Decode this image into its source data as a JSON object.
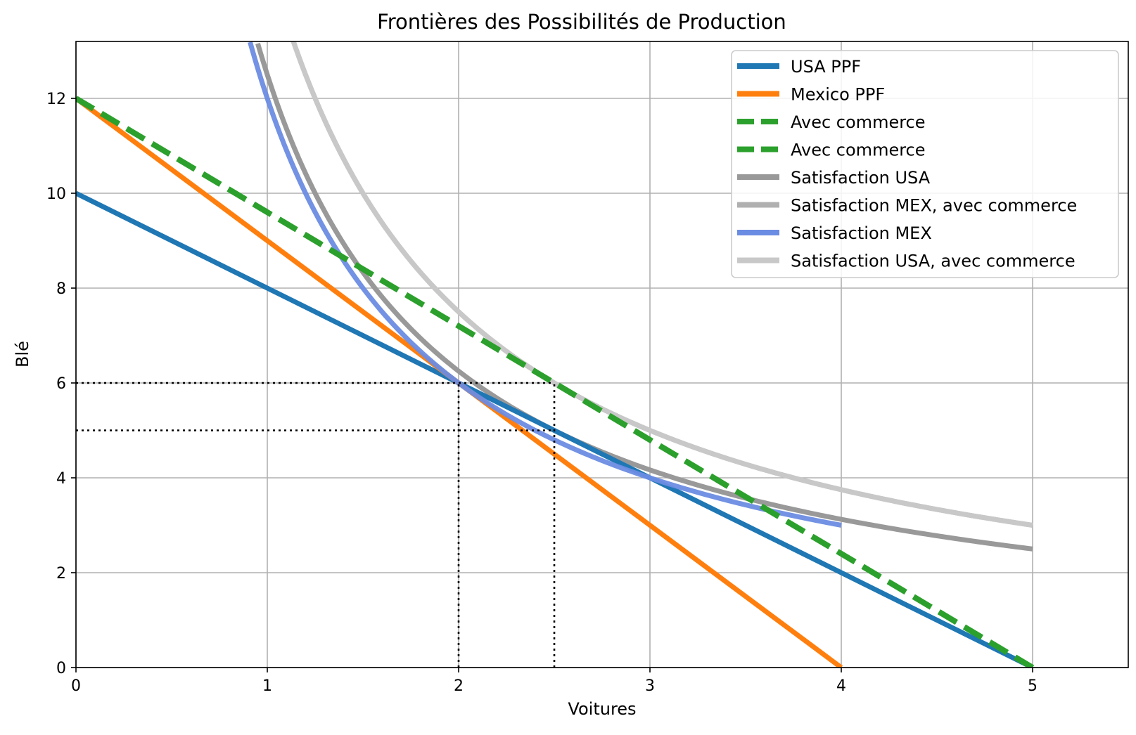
{
  "chart_data": {
    "type": "line",
    "title": "Frontières des Possibilités de Production",
    "xlabel": "Voitures",
    "ylabel": "Blé",
    "xlim": [
      0,
      5.5
    ],
    "ylim": [
      0,
      13.2
    ],
    "xticks": [
      0,
      1,
      2,
      3,
      4,
      5
    ],
    "yticks": [
      0,
      2,
      4,
      6,
      8,
      10,
      12
    ],
    "grid": true,
    "legend_position": "top-right",
    "series": [
      {
        "name": "USA PPF",
        "color": "#1f77b4",
        "style": "solid",
        "kind": "linear",
        "x": [
          0,
          5
        ],
        "y": [
          10,
          0
        ]
      },
      {
        "name": "Mexico PPF",
        "color": "#ff7f0e",
        "style": "solid",
        "kind": "linear",
        "x": [
          0,
          4
        ],
        "y": [
          12,
          0
        ]
      },
      {
        "name": "Avec commerce",
        "color": "#2ca02c",
        "style": "dashed",
        "kind": "linear",
        "x": [
          0,
          5
        ],
        "y": [
          12,
          0
        ]
      },
      {
        "name": "Avec commerce",
        "color": "#2ca02c",
        "style": "dashed",
        "kind": "linear",
        "x": [
          0,
          5
        ],
        "y": [
          12,
          0
        ]
      },
      {
        "name": "Satisfaction USA",
        "color": "#999999",
        "style": "solid",
        "kind": "indifference",
        "k": 12.5,
        "xrange": [
          0.95,
          5
        ]
      },
      {
        "name": "Satisfaction MEX, avec commerce",
        "color": "#b0b0b0",
        "style": "solid",
        "kind": "indifference",
        "k": 15,
        "xrange": [
          1.13,
          5
        ]
      },
      {
        "name": "Satisfaction MEX",
        "color": "#6b8ce3",
        "style": "solid",
        "kind": "power",
        "c": 12,
        "p": 1,
        "xrange": [
          0.91,
          4
        ]
      },
      {
        "name": "Satisfaction USA, avec commerce",
        "color": "#c8c8c8",
        "style": "solid",
        "kind": "indifference",
        "k": 15,
        "xrange": [
          1.13,
          5
        ]
      }
    ],
    "annotations": {
      "reference_lines": [
        {
          "type": "horizontal",
          "y": 6,
          "x_to": 2.5
        },
        {
          "type": "horizontal",
          "y": 5,
          "x_to": 2.5
        },
        {
          "type": "vertical",
          "x": 2,
          "y_to": 6
        },
        {
          "type": "vertical",
          "x": 2.5,
          "y_to": 6
        }
      ]
    }
  }
}
